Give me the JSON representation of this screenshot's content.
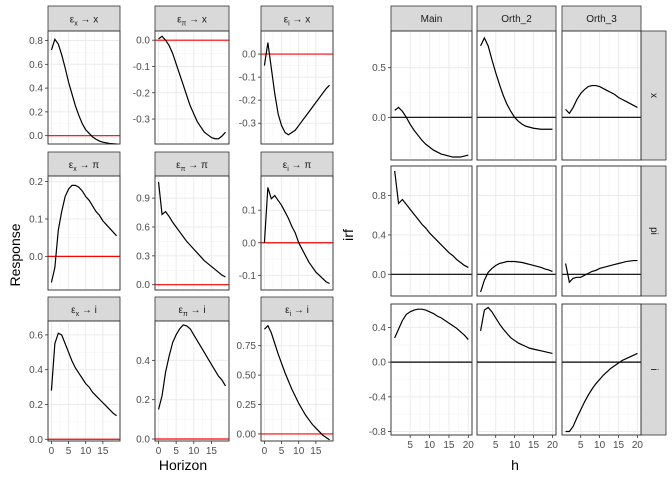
{
  "chart_data": [
    {
      "type": "line",
      "title": "",
      "xlabel": "Horizon",
      "ylabel": "Response",
      "zero_line_color": "#ff0000",
      "series_color": "#000000",
      "x": [
        0,
        1,
        2,
        3,
        4,
        5,
        6,
        7,
        8,
        9,
        10,
        11,
        12,
        13,
        14,
        15,
        16,
        17,
        18,
        19
      ],
      "panels": [
        {
          "row": 0,
          "col": 0,
          "title": "εx → x",
          "ylim": [
            -0.07,
            0.88
          ],
          "yticks": [
            0.0,
            0.2,
            0.4,
            0.6,
            0.8
          ],
          "ytick_labels": [
            "0.0",
            "0.2",
            "0.4",
            "0.6",
            "0.8"
          ],
          "values": [
            0.72,
            0.81,
            0.77,
            0.68,
            0.57,
            0.45,
            0.35,
            0.25,
            0.17,
            0.1,
            0.05,
            0.02,
            -0.01,
            -0.03,
            -0.045,
            -0.055,
            -0.06,
            -0.065,
            -0.068,
            -0.07
          ]
        },
        {
          "row": 0,
          "col": 1,
          "title": "επ → x",
          "ylim": [
            -0.395,
            0.035
          ],
          "yticks": [
            0.0,
            -0.1,
            -0.2,
            -0.3
          ],
          "ytick_labels": [
            "0.0",
            "-0.1",
            "-0.2",
            "-0.3"
          ],
          "values": [
            0.005,
            0.015,
            0.0,
            -0.02,
            -0.05,
            -0.09,
            -0.13,
            -0.17,
            -0.21,
            -0.25,
            -0.28,
            -0.31,
            -0.33,
            -0.35,
            -0.36,
            -0.37,
            -0.375,
            -0.375,
            -0.365,
            -0.35
          ]
        },
        {
          "row": 0,
          "col": 2,
          "title": "εi → x",
          "ylim": [
            -0.39,
            0.1
          ],
          "yticks": [
            0.0,
            -0.1,
            -0.2,
            -0.3
          ],
          "ytick_labels": [
            "0.0",
            "-0.1",
            "-0.2",
            "-0.3"
          ],
          "values": [
            -0.05,
            0.05,
            -0.06,
            -0.17,
            -0.26,
            -0.31,
            -0.34,
            -0.35,
            -0.34,
            -0.33,
            -0.31,
            -0.29,
            -0.27,
            -0.25,
            -0.23,
            -0.21,
            -0.19,
            -0.17,
            -0.15,
            -0.135
          ]
        },
        {
          "row": 1,
          "col": 0,
          "title": "εx → π",
          "ylim": [
            -0.09,
            0.215
          ],
          "yticks": [
            0.0,
            0.1,
            0.2
          ],
          "ytick_labels": [
            "0.0",
            "0.1",
            "0.2"
          ],
          "values": [
            -0.07,
            -0.03,
            0.07,
            0.12,
            0.16,
            0.18,
            0.19,
            0.19,
            0.185,
            0.175,
            0.16,
            0.15,
            0.135,
            0.12,
            0.11,
            0.095,
            0.085,
            0.075,
            0.065,
            0.055
          ]
        },
        {
          "row": 1,
          "col": 1,
          "title": "επ → π",
          "ylim": [
            -0.055,
            1.13
          ],
          "yticks": [
            0.0,
            0.3,
            0.6,
            0.9
          ],
          "ytick_labels": [
            "0.0",
            "0.3",
            "0.6",
            "0.9"
          ],
          "values": [
            1.07,
            0.73,
            0.76,
            0.71,
            0.65,
            0.6,
            0.55,
            0.5,
            0.45,
            0.41,
            0.37,
            0.33,
            0.29,
            0.25,
            0.22,
            0.19,
            0.16,
            0.13,
            0.1,
            0.08
          ]
        },
        {
          "row": 1,
          "col": 2,
          "title": "εi → π",
          "ylim": [
            -0.145,
            0.205
          ],
          "yticks": [
            0.1,
            0.0,
            -0.1
          ],
          "ytick_labels": [
            "0.1",
            "0.0",
            "-0.1"
          ],
          "values": [
            0.0,
            0.17,
            0.135,
            0.145,
            0.13,
            0.115,
            0.095,
            0.075,
            0.05,
            0.03,
            0.0,
            -0.02,
            -0.04,
            -0.06,
            -0.075,
            -0.09,
            -0.1,
            -0.11,
            -0.12,
            -0.125
          ]
        },
        {
          "row": 2,
          "col": 0,
          "title": "εx → i",
          "ylim": [
            -0.01,
            0.68
          ],
          "yticks": [
            0.0,
            0.2,
            0.4,
            0.6
          ],
          "ytick_labels": [
            "0.0",
            "0.2",
            "0.4",
            "0.6"
          ],
          "values": [
            0.28,
            0.55,
            0.61,
            0.6,
            0.55,
            0.5,
            0.45,
            0.41,
            0.38,
            0.35,
            0.32,
            0.3,
            0.27,
            0.25,
            0.23,
            0.21,
            0.19,
            0.17,
            0.15,
            0.135
          ]
        },
        {
          "row": 2,
          "col": 1,
          "title": "επ → i",
          "ylim": [
            -0.01,
            0.6
          ],
          "yticks": [
            0.0,
            0.2,
            0.4
          ],
          "ytick_labels": [
            "0.0",
            "0.2",
            "0.4"
          ],
          "values": [
            0.15,
            0.22,
            0.34,
            0.42,
            0.49,
            0.53,
            0.56,
            0.58,
            0.575,
            0.56,
            0.53,
            0.5,
            0.47,
            0.44,
            0.41,
            0.38,
            0.35,
            0.32,
            0.3,
            0.27
          ]
        },
        {
          "row": 2,
          "col": 2,
          "title": "εi → i",
          "ylim": [
            -0.06,
            0.96
          ],
          "yticks": [
            0.0,
            0.25,
            0.5,
            0.75
          ],
          "ytick_labels": [
            "0.00",
            "0.25",
            "0.50",
            "0.75"
          ],
          "values": [
            0.89,
            0.92,
            0.86,
            0.77,
            0.68,
            0.6,
            0.52,
            0.45,
            0.38,
            0.32,
            0.26,
            0.21,
            0.16,
            0.12,
            0.08,
            0.05,
            0.02,
            -0.01,
            -0.03,
            -0.05
          ]
        }
      ],
      "xlim": [
        -1,
        20
      ],
      "xticks": [
        0,
        5,
        10,
        15
      ],
      "xtick_labels": [
        "0",
        "5",
        "10",
        "15"
      ]
    },
    {
      "type": "line",
      "title": "",
      "xlabel": "h",
      "ylabel": "irf",
      "zero_line_color": "#000000",
      "series_color": "#000000",
      "columns": [
        "Main",
        "Orth_2",
        "Orth_3"
      ],
      "rows": [
        "x",
        "pi",
        "i"
      ],
      "x": [
        1,
        2,
        3,
        4,
        5,
        6,
        7,
        8,
        9,
        10,
        11,
        12,
        13,
        14,
        15,
        16,
        17,
        18,
        19,
        20
      ],
      "xlim": [
        0.05,
        20.95
      ],
      "xticks": [
        5,
        10,
        15,
        20
      ],
      "xtick_labels": [
        "5",
        "10",
        "15",
        "20"
      ],
      "row_scales": [
        {
          "ylim": [
            -0.43,
            0.87
          ],
          "yticks": [
            0.5,
            0.0
          ],
          "ytick_labels": [
            "0.5",
            "0.0"
          ]
        },
        {
          "ylim": [
            -0.22,
            1.1
          ],
          "yticks": [
            0.8,
            0.4,
            0.0
          ],
          "ytick_labels": [
            "0.8",
            "0.4",
            "0.0"
          ]
        },
        {
          "ylim": [
            -0.84,
            0.67
          ],
          "yticks": [
            0.4,
            0.0,
            -0.4,
            -0.8
          ],
          "ytick_labels": [
            "0.4",
            "0.0",
            "-0.4",
            "-0.8"
          ]
        }
      ],
      "panels": [
        {
          "row": 0,
          "col": 0,
          "values": [
            0.07,
            0.1,
            0.06,
            0.0,
            -0.07,
            -0.13,
            -0.18,
            -0.23,
            -0.27,
            -0.3,
            -0.33,
            -0.35,
            -0.37,
            -0.38,
            -0.39,
            -0.4,
            -0.4,
            -0.4,
            -0.39,
            -0.38
          ]
        },
        {
          "row": 0,
          "col": 1,
          "values": [
            0.72,
            0.8,
            0.72,
            0.58,
            0.45,
            0.33,
            0.22,
            0.13,
            0.06,
            0.0,
            -0.04,
            -0.07,
            -0.09,
            -0.1,
            -0.11,
            -0.115,
            -0.12,
            -0.12,
            -0.12,
            -0.12
          ]
        },
        {
          "row": 0,
          "col": 2,
          "values": [
            0.08,
            0.04,
            0.1,
            0.18,
            0.24,
            0.28,
            0.31,
            0.32,
            0.32,
            0.31,
            0.29,
            0.27,
            0.25,
            0.23,
            0.2,
            0.18,
            0.16,
            0.14,
            0.12,
            0.1
          ]
        },
        {
          "row": 1,
          "col": 0,
          "values": [
            1.05,
            0.72,
            0.76,
            0.71,
            0.66,
            0.61,
            0.56,
            0.51,
            0.47,
            0.42,
            0.38,
            0.34,
            0.3,
            0.26,
            0.22,
            0.19,
            0.15,
            0.12,
            0.09,
            0.07
          ]
        },
        {
          "row": 1,
          "col": 1,
          "values": [
            -0.18,
            -0.06,
            0.02,
            0.06,
            0.09,
            0.11,
            0.12,
            0.13,
            0.13,
            0.13,
            0.125,
            0.12,
            0.11,
            0.1,
            0.09,
            0.08,
            0.07,
            0.055,
            0.045,
            0.03
          ]
        },
        {
          "row": 1,
          "col": 2,
          "values": [
            0.11,
            -0.08,
            -0.04,
            -0.03,
            -0.03,
            -0.01,
            0.01,
            0.03,
            0.04,
            0.06,
            0.07,
            0.08,
            0.09,
            0.1,
            0.11,
            0.12,
            0.13,
            0.135,
            0.14,
            0.14
          ]
        },
        {
          "row": 2,
          "col": 0,
          "values": [
            0.28,
            0.38,
            0.48,
            0.55,
            0.58,
            0.6,
            0.61,
            0.61,
            0.6,
            0.58,
            0.56,
            0.53,
            0.51,
            0.48,
            0.45,
            0.42,
            0.39,
            0.35,
            0.31,
            0.26
          ]
        },
        {
          "row": 2,
          "col": 1,
          "values": [
            0.36,
            0.6,
            0.63,
            0.58,
            0.51,
            0.44,
            0.38,
            0.33,
            0.28,
            0.25,
            0.22,
            0.2,
            0.18,
            0.16,
            0.15,
            0.14,
            0.13,
            0.12,
            0.11,
            0.1
          ]
        },
        {
          "row": 2,
          "col": 2,
          "values": [
            -0.8,
            -0.8,
            -0.74,
            -0.64,
            -0.55,
            -0.46,
            -0.38,
            -0.31,
            -0.25,
            -0.2,
            -0.15,
            -0.11,
            -0.07,
            -0.04,
            -0.01,
            0.02,
            0.04,
            0.06,
            0.08,
            0.1
          ]
        }
      ]
    }
  ]
}
